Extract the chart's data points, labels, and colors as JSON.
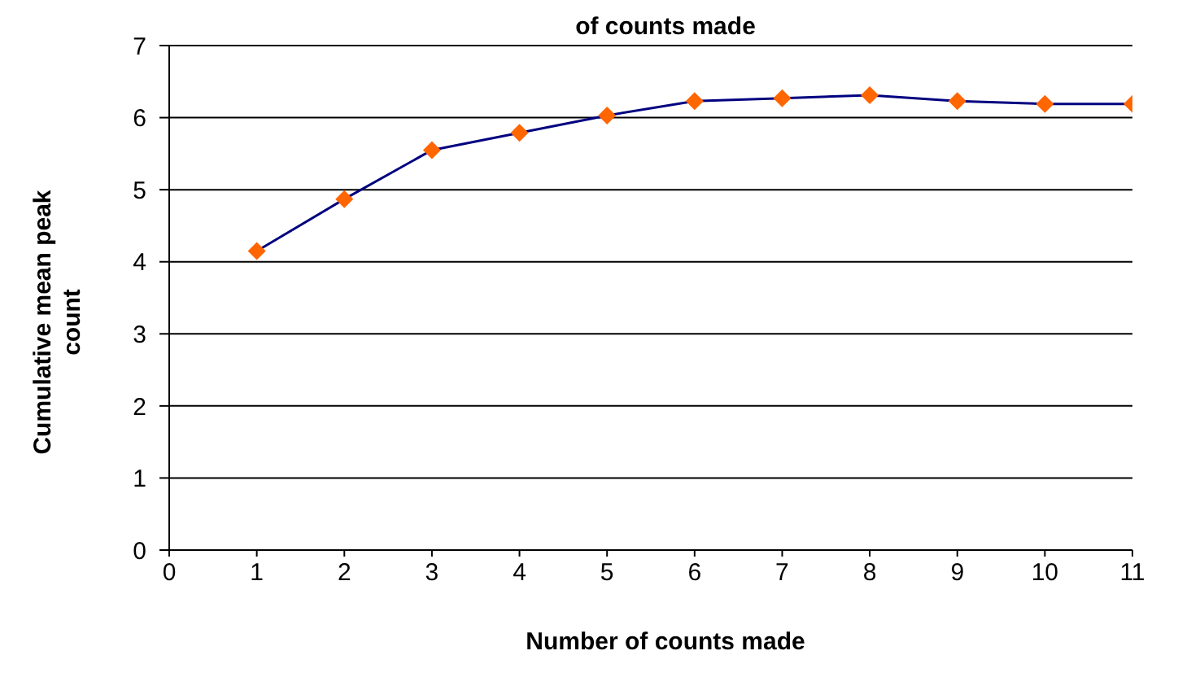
{
  "chart_data": {
    "type": "line",
    "title": "of counts made",
    "xlabel": "Number of counts made",
    "ylabel": "Cumulative mean peak count",
    "x": [
      1,
      2,
      3,
      4,
      5,
      6,
      7,
      8,
      9,
      10,
      11
    ],
    "series": [
      {
        "color": "#000080",
        "colors": [
          "#ff6600",
          "#ff6600",
          "#ff6600",
          "#ff6600",
          "#ff6600",
          "#ff6600",
          "#ff6600",
          "#ff6600",
          "#ff6600",
          "#ff6600",
          "#ff6600"
        ],
        "values": [
          4.15,
          4.87,
          5.55,
          5.79,
          6.03,
          6.23,
          6.27,
          6.31,
          6.23,
          6.19,
          6.19
        ]
      }
    ],
    "xlim": [
      0,
      11
    ],
    "xticks": [
      0,
      1,
      2,
      3,
      4,
      5,
      6,
      7,
      8,
      9,
      10,
      11
    ],
    "ylim": [
      0,
      7
    ],
    "yticks": [
      0,
      1,
      2,
      3,
      4,
      5,
      6,
      7
    ],
    "grid": "y",
    "marker": "diamond",
    "legend": false
  }
}
